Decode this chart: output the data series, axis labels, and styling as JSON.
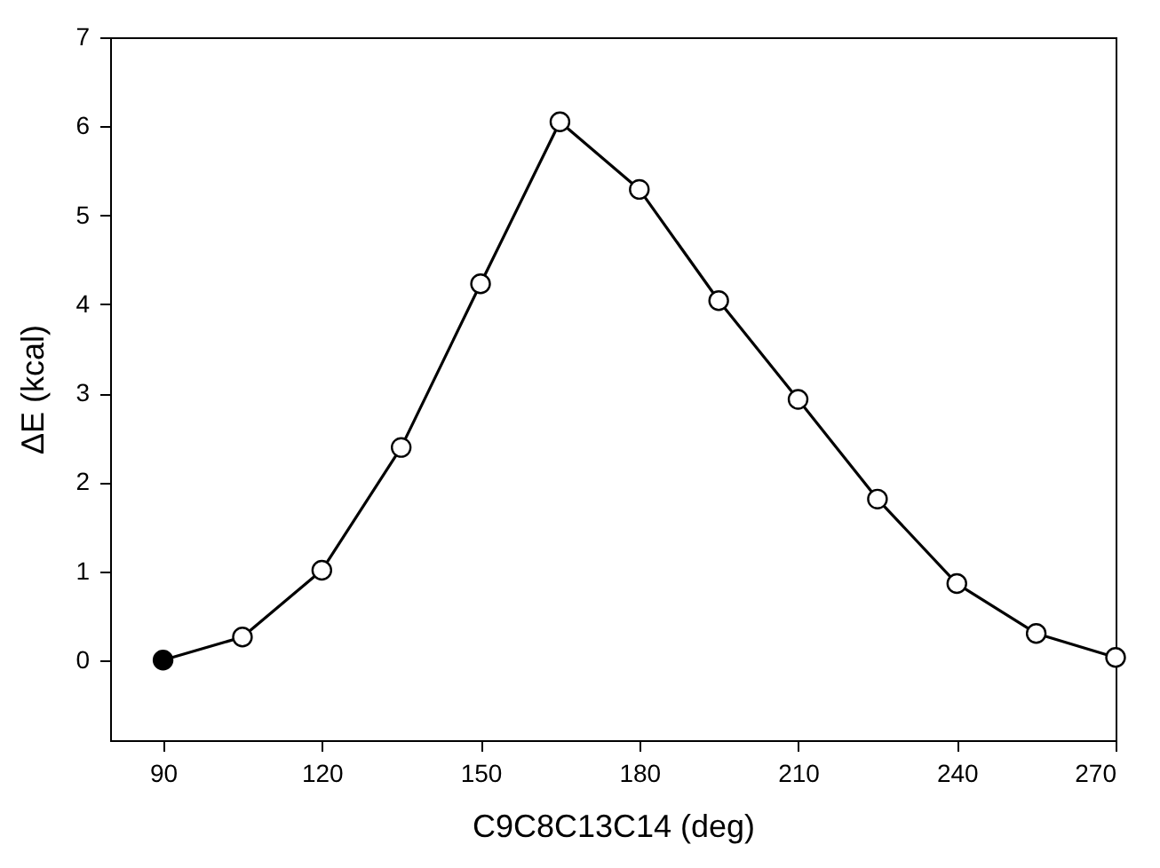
{
  "chart_data": {
    "type": "line",
    "xlabel": "C9C8C13C14 (deg)",
    "ylabel": "ΔE (kcal)",
    "x": [
      90,
      105,
      120,
      135,
      150,
      165,
      180,
      195,
      210,
      225,
      240,
      255,
      270
    ],
    "series": [
      {
        "color": "#000000",
        "colors": [
          "#000000",
          "#ffffff",
          "#ffffff",
          "#ffffff",
          "#ffffff",
          "#ffffff",
          "#ffffff",
          "#ffffff",
          "#ffffff",
          "#ffffff",
          "#ffffff",
          "#ffffff",
          "#ffffff"
        ],
        "values": [
          0,
          0.26,
          1.01,
          2.39,
          4.23,
          6.05,
          5.29,
          4.04,
          2.93,
          1.81,
          0.86,
          0.3,
          0.03
        ]
      }
    ],
    "xlim": [
      80,
      270
    ],
    "xticks": [
      90,
      120,
      150,
      180,
      210,
      240,
      270
    ],
    "ylim": [
      -0.9,
      7
    ],
    "yticks": [
      0,
      1,
      2,
      3,
      4,
      5,
      6,
      7
    ],
    "grid": false,
    "marker": "circle",
    "line_style": "solid"
  }
}
